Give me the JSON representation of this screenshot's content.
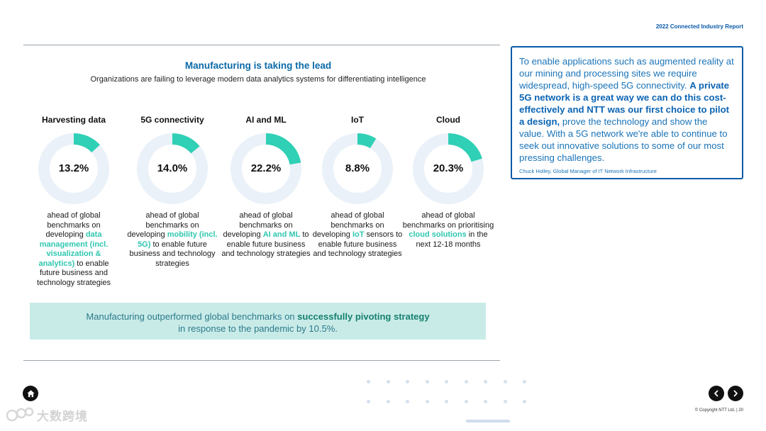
{
  "header": {
    "report_title": "2022 Connected Industry Report"
  },
  "main": {
    "title": "Manufacturing is taking the lead",
    "subtitle": "Organizations are failing to leverage modern data analytics systems for differentiating intelligence"
  },
  "stats": [
    {
      "label": "Harvesting data",
      "value": 13.2,
      "display": "13.2%",
      "desc_before": "ahead of global benchmarks on developing ",
      "desc_highlight": "data management (incl. visualization & analytics)",
      "desc_after": " to enable future business and technology strategies"
    },
    {
      "label": "5G connectivity",
      "value": 14.0,
      "display": "14.0%",
      "desc_before": "ahead of global benchmarks on developing ",
      "desc_highlight": "mobility (incl. 5G)",
      "desc_after": " to enable future business and technology strategies"
    },
    {
      "label": "AI and ML",
      "value": 22.2,
      "display": "22.2%",
      "desc_before": "ahead of global benchmarks on developing ",
      "desc_highlight": "AI and ML",
      "desc_after": " to enable future business and technology strategies"
    },
    {
      "label": "IoT",
      "value": 8.8,
      "display": "8.8%",
      "desc_before": "ahead of global benchmarks on developing ",
      "desc_highlight": "IoT",
      "desc_after": " sensors to enable future business and technology strategies"
    },
    {
      "label": "Cloud",
      "value": 20.3,
      "display": "20.3%",
      "desc_before": "ahead of global benchmarks on prioritising ",
      "desc_highlight": "cloud solutions",
      "desc_after": " in the next 12-18 months"
    }
  ],
  "banner": {
    "before": "Manufacturing outperformed global benchmarks on ",
    "strong": "successfully pivoting strategy",
    "after": " in response to the pandemic by 10.5%."
  },
  "quote": {
    "before": "To enable applications such as augmented reality at our mining and processing sites we require widespread, high-speed 5G connectivity. ",
    "strong": "A private 5G network is a great way we can do this cost-effectively and NTT was our first choice to pilot a design,",
    "after": " prove the technology and show the value.  With a 5G network we're able to continue to seek out innovative solutions to some of our most pressing challenges.",
    "attribution": "Chuck Holley, Global Manager of IT Network Infrastructure"
  },
  "footer": {
    "copyright": "© Copyright NTT Ltd. | 20"
  },
  "watermark": {
    "text": "大数跨境"
  },
  "colors": {
    "accent": "#2fd0b5",
    "ring": "#eaf1f8",
    "brand_blue": "#0a5aa8",
    "banner_bg": "#c9ebe8"
  },
  "icons": {
    "home": "home-icon",
    "prev": "chevron-left-icon",
    "next": "chevron-right-icon"
  }
}
